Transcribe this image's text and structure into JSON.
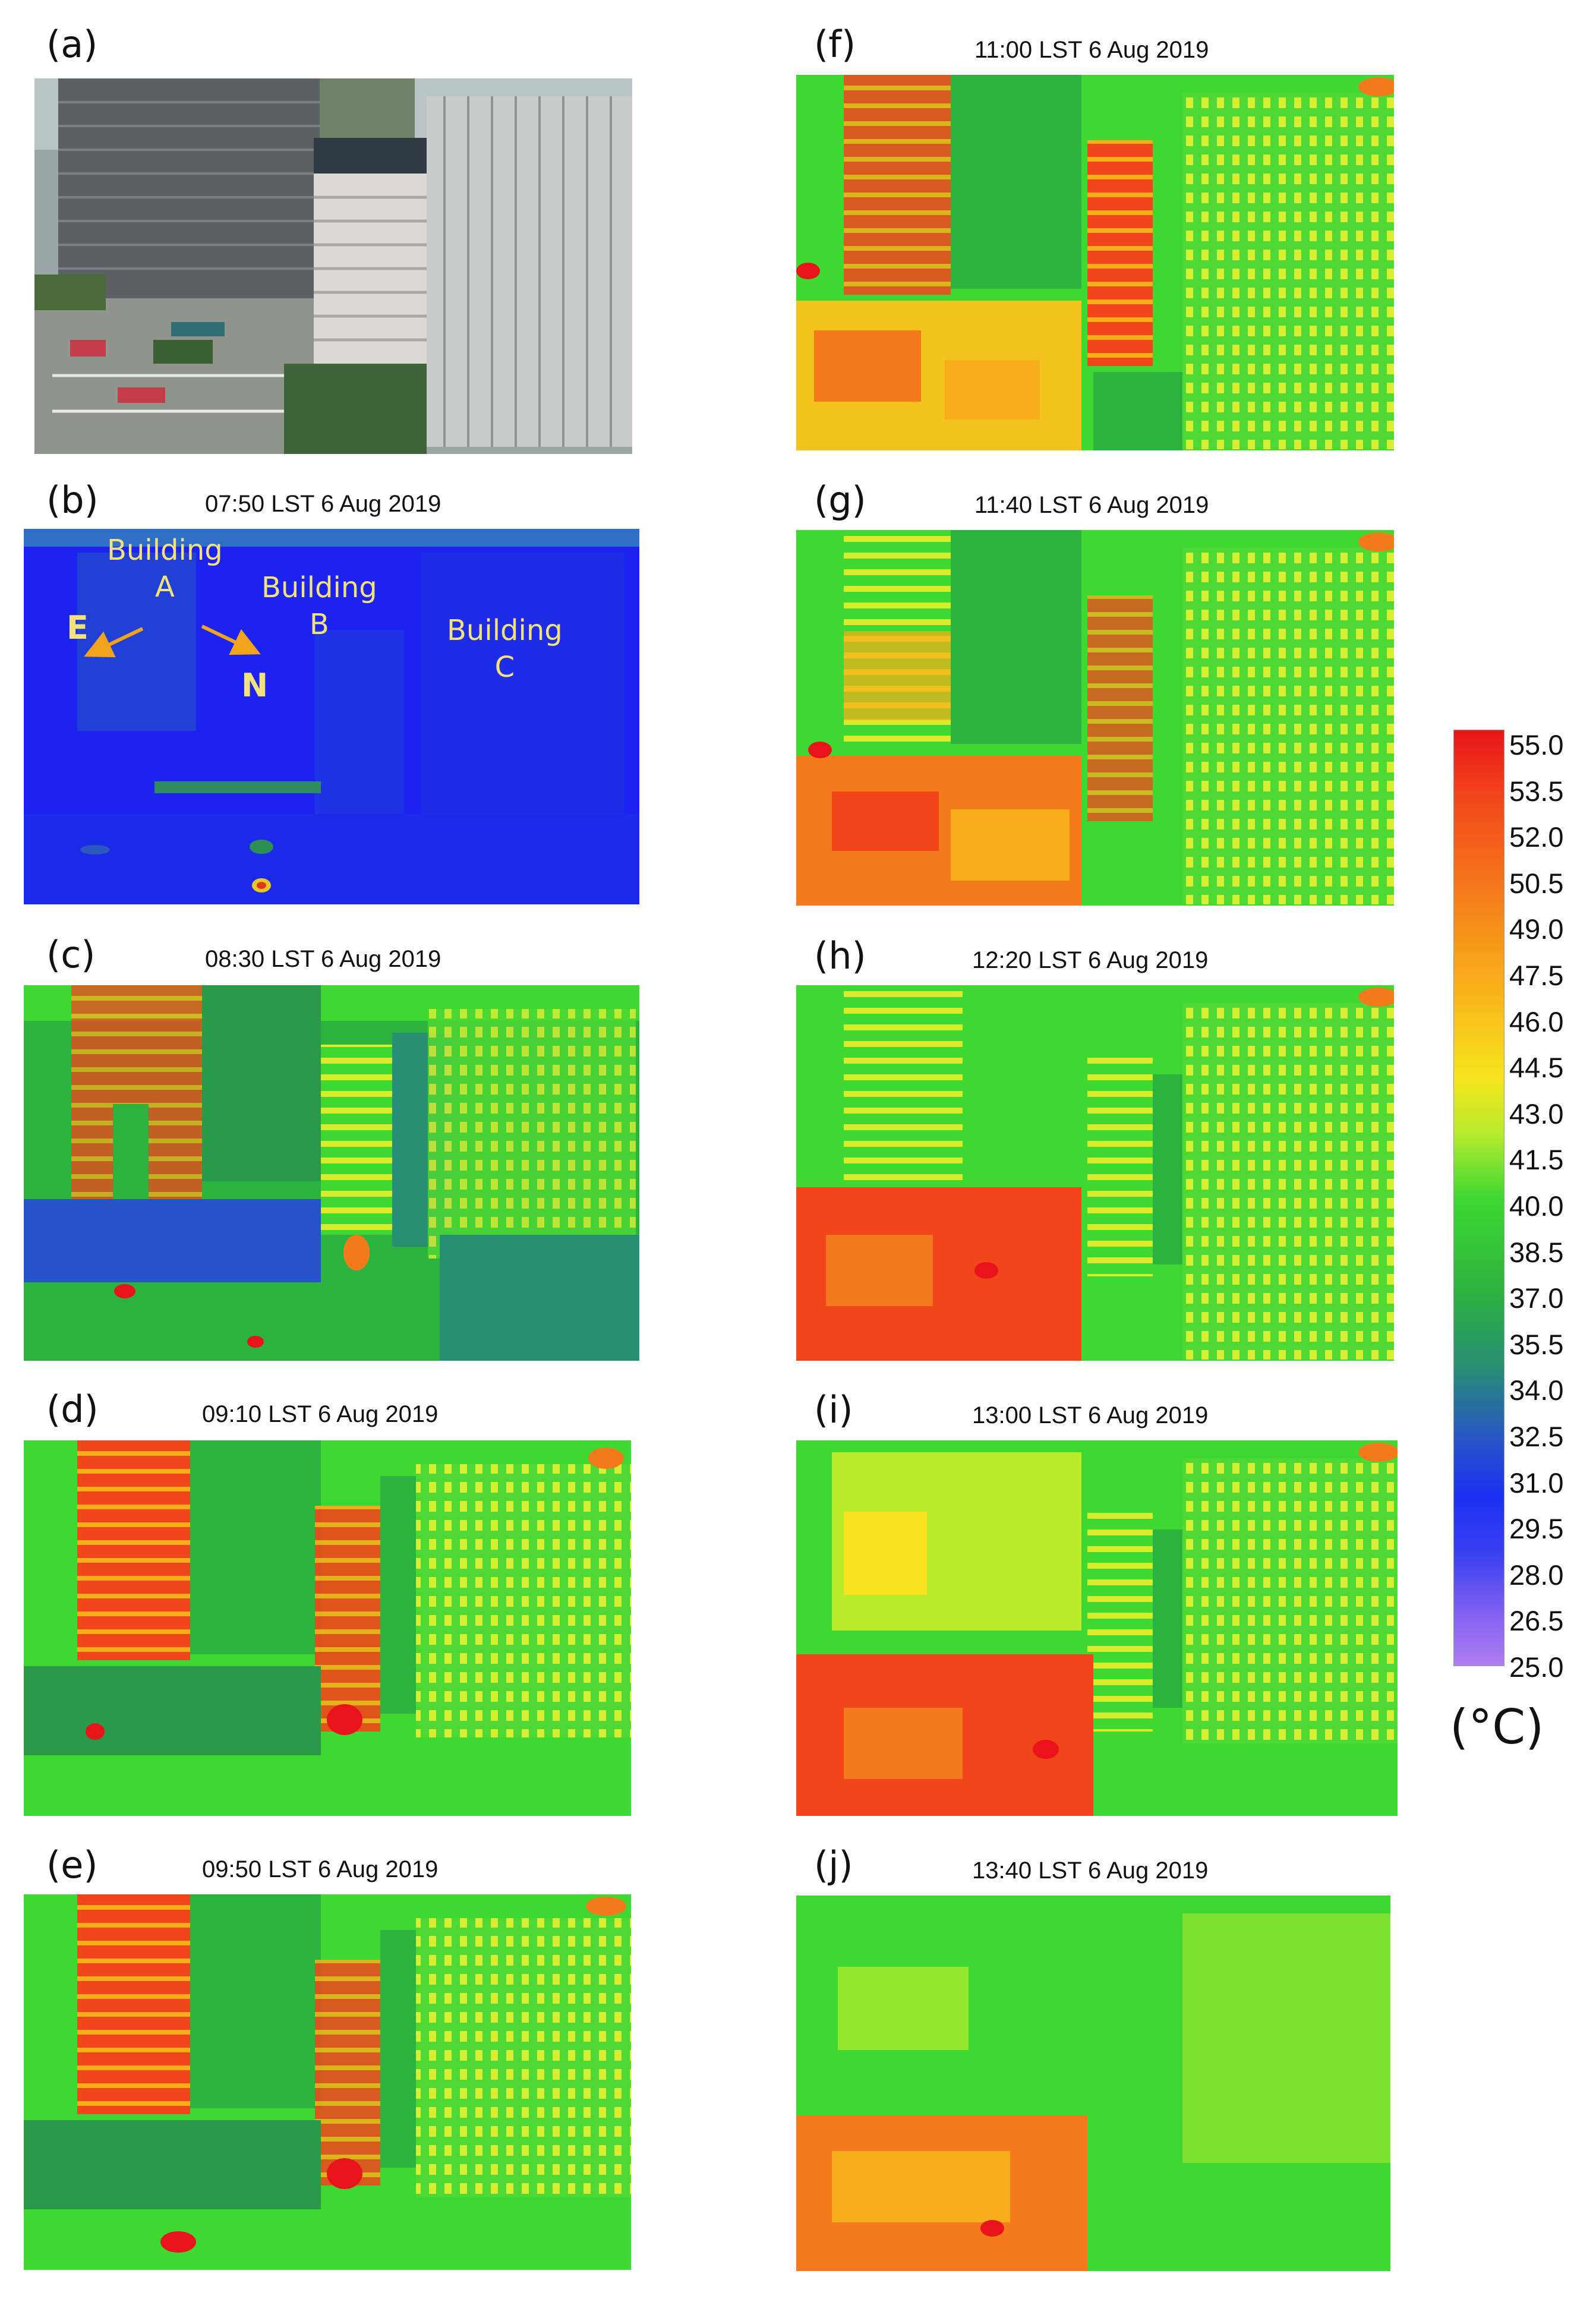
{
  "panels": [
    {
      "label": "(a)",
      "title": ""
    },
    {
      "label": "(b)",
      "title": "07:50 LST 6 Aug 2019"
    },
    {
      "label": "(c)",
      "title": "08:30 LST 6 Aug 2019"
    },
    {
      "label": "(d)",
      "title": "09:10 LST 6 Aug 2019"
    },
    {
      "label": "(e)",
      "title": "09:50 LST 6 Aug 2019"
    },
    {
      "label": "(f)",
      "title": "11:00 LST 6 Aug 2019"
    },
    {
      "label": "(g)",
      "title": "11:40 LST 6 Aug 2019"
    },
    {
      "label": "(h)",
      "title": "12:20 LST 6 Aug 2019"
    },
    {
      "label": "(i)",
      "title": "13:00 LST 6 Aug 2019"
    },
    {
      "label": "(j)",
      "title": "13:40 LST 6 Aug 2019"
    }
  ],
  "annotations": {
    "building_a": [
      "Building",
      "A"
    ],
    "building_b": [
      "Building",
      "B"
    ],
    "building_c": [
      "Building",
      "C"
    ],
    "east": "E",
    "north": "N"
  },
  "colorbar": {
    "ticks": [
      "55.0",
      "53.5",
      "52.0",
      "50.5",
      "49.0",
      "47.5",
      "46.0",
      "44.5",
      "43.0",
      "41.5",
      "40.0",
      "38.5",
      "37.0",
      "35.5",
      "34.0",
      "32.5",
      "31.0",
      "29.5",
      "28.0",
      "26.5",
      "25.0"
    ],
    "unit": "(°C)",
    "colors": [
      "#e8141a",
      "#f2451a",
      "#f57a1b",
      "#f8ae1a",
      "#f7e41d",
      "#b9ec2c",
      "#3fd832",
      "#2cb23f",
      "#278f72",
      "#2753c9",
      "#1c2ff2",
      "#3840f0",
      "#7e5ef0",
      "#b17ef2"
    ]
  }
}
